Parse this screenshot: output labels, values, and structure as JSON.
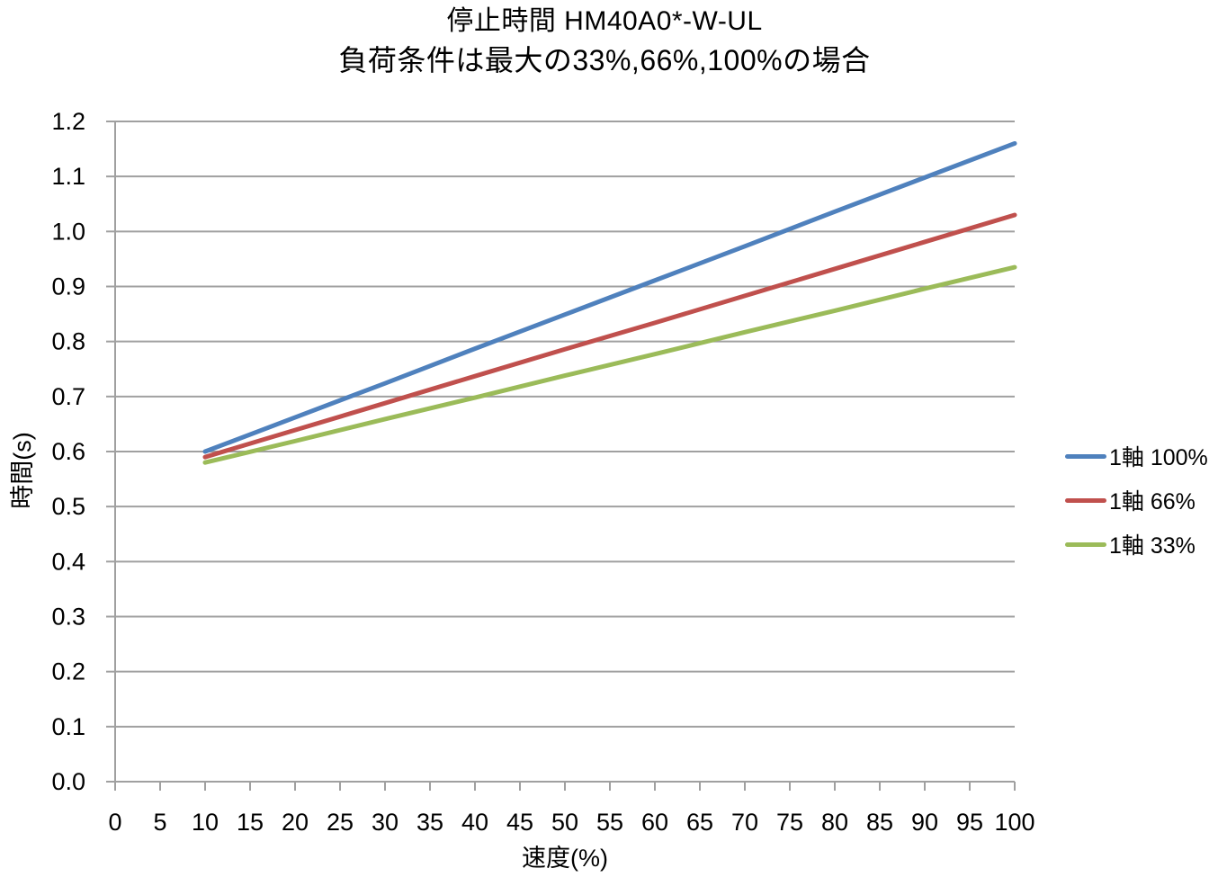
{
  "chart_data": {
    "type": "line",
    "title": "停止時間 HM40A0*-W-UL",
    "subtitle": "負荷条件は最大の33%,66%,100%の場合",
    "xlabel": "速度(%)",
    "ylabel": "時間(s)",
    "xlim": [
      0,
      100
    ],
    "ylim": [
      0.0,
      1.2
    ],
    "x_ticks": [
      0,
      5,
      10,
      15,
      20,
      25,
      30,
      35,
      40,
      45,
      50,
      55,
      60,
      65,
      70,
      75,
      80,
      85,
      90,
      95,
      100
    ],
    "y_tick_labels": [
      "0.0",
      "0.1",
      "0.2",
      "0.3",
      "0.4",
      "0.5",
      "0.6",
      "0.7",
      "0.8",
      "0.9",
      "1.0",
      "1.1",
      "1.2"
    ],
    "grid": "horizontal",
    "legend_position": "right",
    "x": [
      10,
      20,
      30,
      40,
      50,
      60,
      70,
      80,
      90,
      100
    ],
    "series": [
      {
        "name": "1軸 100%",
        "color": "#4F81BD",
        "values": [
          0.6,
          0.662,
          0.724,
          0.787,
          0.849,
          0.911,
          0.973,
          1.036,
          1.098,
          1.16
        ]
      },
      {
        "name": "1軸 66%",
        "color": "#C0504D",
        "values": [
          0.59,
          0.639,
          0.688,
          0.737,
          0.786,
          0.834,
          0.883,
          0.932,
          0.981,
          1.03
        ]
      },
      {
        "name": "1軸 33%",
        "color": "#9BBB59",
        "values": [
          0.58,
          0.619,
          0.659,
          0.698,
          0.738,
          0.777,
          0.817,
          0.856,
          0.896,
          0.935
        ]
      }
    ],
    "style": {
      "gridline_color": "#A0A0A0",
      "axis_color": "#A0A0A0",
      "text_color": "#000000",
      "background": "#FFFFFF",
      "series_line_width": 5,
      "tick_label_font_size": 27
    }
  }
}
